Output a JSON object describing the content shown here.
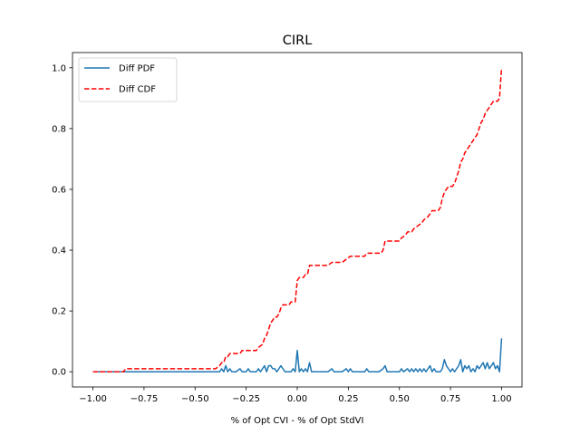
{
  "chart_data": {
    "type": "line",
    "title": "CIRL",
    "xlabel": "% of Opt CVI - % of Opt StdVI",
    "ylabel": "",
    "xlim": [
      -1.1,
      1.1
    ],
    "ylim": [
      -0.05,
      1.05
    ],
    "x_ticks": [
      -1.0,
      -0.75,
      -0.5,
      -0.25,
      0.0,
      0.25,
      0.5,
      0.75,
      1.0
    ],
    "x_tick_labels": [
      "−1.00",
      "−0.75",
      "−0.50",
      "−0.25",
      "0.00",
      "0.25",
      "0.50",
      "0.75",
      "1.00"
    ],
    "y_ticks": [
      0.0,
      0.2,
      0.4,
      0.6,
      0.8,
      1.0
    ],
    "y_tick_labels": [
      "0.0",
      "0.2",
      "0.4",
      "0.6",
      "0.8",
      "1.0"
    ],
    "grid": false,
    "legend": {
      "placement": "top-left",
      "entries": [
        "Diff PDF",
        "Diff CDF"
      ]
    },
    "series": [
      {
        "name": "Diff PDF",
        "color": "#1f77b4",
        "style": "solid",
        "points": [
          [
            -1.0,
            0.0
          ],
          [
            -0.9,
            0.0
          ],
          [
            -0.8,
            0.0
          ],
          [
            -0.6,
            0.0
          ],
          [
            -0.4,
            0.0
          ],
          [
            -0.38,
            0.0
          ],
          [
            -0.37,
            0.01
          ],
          [
            -0.36,
            0.0
          ],
          [
            -0.35,
            0.02
          ],
          [
            -0.34,
            0.0
          ],
          [
            -0.33,
            0.01
          ],
          [
            -0.32,
            0.0
          ],
          [
            -0.3,
            0.0
          ],
          [
            -0.28,
            0.01
          ],
          [
            -0.27,
            0.0
          ],
          [
            -0.25,
            0.0
          ],
          [
            -0.24,
            0.01
          ],
          [
            -0.23,
            0.0
          ],
          [
            -0.2,
            0.0
          ],
          [
            -0.19,
            0.01
          ],
          [
            -0.18,
            0.0
          ],
          [
            -0.17,
            0.01
          ],
          [
            -0.16,
            0.02
          ],
          [
            -0.15,
            0.0
          ],
          [
            -0.14,
            0.02
          ],
          [
            -0.13,
            0.02
          ],
          [
            -0.12,
            0.01
          ],
          [
            -0.11,
            0.01
          ],
          [
            -0.1,
            0.0
          ],
          [
            -0.09,
            0.01
          ],
          [
            -0.08,
            0.02
          ],
          [
            -0.07,
            0.01
          ],
          [
            -0.06,
            0.0
          ],
          [
            -0.04,
            0.0
          ],
          [
            -0.03,
            0.0
          ],
          [
            -0.02,
            0.01
          ],
          [
            -0.01,
            0.0
          ],
          [
            0.0,
            0.07
          ],
          [
            0.01,
            0.0
          ],
          [
            0.02,
            0.01
          ],
          [
            0.03,
            0.0
          ],
          [
            0.04,
            0.01
          ],
          [
            0.05,
            0.0
          ],
          [
            0.06,
            0.03
          ],
          [
            0.07,
            0.0
          ],
          [
            0.1,
            0.0
          ],
          [
            0.15,
            0.0
          ],
          [
            0.17,
            0.01
          ],
          [
            0.18,
            0.0
          ],
          [
            0.22,
            0.0
          ],
          [
            0.24,
            0.01
          ],
          [
            0.25,
            0.0
          ],
          [
            0.26,
            0.01
          ],
          [
            0.27,
            0.0
          ],
          [
            0.3,
            0.0
          ],
          [
            0.33,
            0.0
          ],
          [
            0.34,
            0.01
          ],
          [
            0.35,
            0.0
          ],
          [
            0.4,
            0.0
          ],
          [
            0.42,
            0.01
          ],
          [
            0.43,
            0.02
          ],
          [
            0.44,
            0.0
          ],
          [
            0.5,
            0.0
          ],
          [
            0.51,
            0.01
          ],
          [
            0.52,
            0.0
          ],
          [
            0.54,
            0.01
          ],
          [
            0.55,
            0.0
          ],
          [
            0.56,
            0.01
          ],
          [
            0.57,
            0.0
          ],
          [
            0.58,
            0.01
          ],
          [
            0.59,
            0.0
          ],
          [
            0.6,
            0.01
          ],
          [
            0.61,
            0.0
          ],
          [
            0.62,
            0.01
          ],
          [
            0.63,
            0.0
          ],
          [
            0.64,
            0.01
          ],
          [
            0.65,
            0.02
          ],
          [
            0.66,
            0.0
          ],
          [
            0.67,
            0.01
          ],
          [
            0.68,
            0.0
          ],
          [
            0.7,
            0.0
          ],
          [
            0.71,
            0.01
          ],
          [
            0.72,
            0.04
          ],
          [
            0.73,
            0.02
          ],
          [
            0.74,
            0.01
          ],
          [
            0.75,
            0.0
          ],
          [
            0.76,
            0.01
          ],
          [
            0.77,
            0.0
          ],
          [
            0.78,
            0.01
          ],
          [
            0.79,
            0.02
          ],
          [
            0.8,
            0.04
          ],
          [
            0.81,
            0.0
          ],
          [
            0.82,
            0.02
          ],
          [
            0.83,
            0.01
          ],
          [
            0.84,
            0.02
          ],
          [
            0.85,
            0.0
          ],
          [
            0.86,
            0.01
          ],
          [
            0.87,
            0.0
          ],
          [
            0.88,
            0.02
          ],
          [
            0.89,
            0.01
          ],
          [
            0.9,
            0.02
          ],
          [
            0.91,
            0.03
          ],
          [
            0.92,
            0.01
          ],
          [
            0.93,
            0.03
          ],
          [
            0.94,
            0.01
          ],
          [
            0.95,
            0.02
          ],
          [
            0.96,
            0.03
          ],
          [
            0.97,
            0.01
          ],
          [
            0.98,
            0.02
          ],
          [
            0.99,
            0.0
          ],
          [
            1.0,
            0.11
          ]
        ]
      },
      {
        "name": "Diff CDF",
        "color": "#ff0000",
        "style": "dashed",
        "points": [
          [
            -1.0,
            0.0
          ],
          [
            -0.85,
            0.0
          ],
          [
            -0.84,
            0.01
          ],
          [
            -0.4,
            0.01
          ],
          [
            -0.38,
            0.02
          ],
          [
            -0.37,
            0.03
          ],
          [
            -0.36,
            0.03
          ],
          [
            -0.35,
            0.05
          ],
          [
            -0.34,
            0.05
          ],
          [
            -0.33,
            0.06
          ],
          [
            -0.28,
            0.06
          ],
          [
            -0.27,
            0.07
          ],
          [
            -0.2,
            0.07
          ],
          [
            -0.19,
            0.08
          ],
          [
            -0.17,
            0.09
          ],
          [
            -0.16,
            0.11
          ],
          [
            -0.15,
            0.12
          ],
          [
            -0.14,
            0.14
          ],
          [
            -0.13,
            0.16
          ],
          [
            -0.12,
            0.17
          ],
          [
            -0.11,
            0.18
          ],
          [
            -0.1,
            0.18
          ],
          [
            -0.09,
            0.19
          ],
          [
            -0.08,
            0.21
          ],
          [
            -0.07,
            0.22
          ],
          [
            -0.05,
            0.22
          ],
          [
            -0.04,
            0.22
          ],
          [
            -0.03,
            0.23
          ],
          [
            -0.01,
            0.23
          ],
          [
            0.0,
            0.3
          ],
          [
            0.01,
            0.31
          ],
          [
            0.03,
            0.31
          ],
          [
            0.04,
            0.32
          ],
          [
            0.05,
            0.32
          ],
          [
            0.06,
            0.35
          ],
          [
            0.15,
            0.35
          ],
          [
            0.17,
            0.36
          ],
          [
            0.22,
            0.36
          ],
          [
            0.24,
            0.37
          ],
          [
            0.26,
            0.38
          ],
          [
            0.33,
            0.38
          ],
          [
            0.34,
            0.39
          ],
          [
            0.41,
            0.39
          ],
          [
            0.42,
            0.4
          ],
          [
            0.43,
            0.43
          ],
          [
            0.5,
            0.43
          ],
          [
            0.51,
            0.44
          ],
          [
            0.53,
            0.45
          ],
          [
            0.54,
            0.46
          ],
          [
            0.56,
            0.46
          ],
          [
            0.57,
            0.47
          ],
          [
            0.59,
            0.48
          ],
          [
            0.61,
            0.49
          ],
          [
            0.62,
            0.5
          ],
          [
            0.64,
            0.51
          ],
          [
            0.65,
            0.52
          ],
          [
            0.66,
            0.53
          ],
          [
            0.69,
            0.53
          ],
          [
            0.7,
            0.54
          ],
          [
            0.71,
            0.57
          ],
          [
            0.72,
            0.59
          ],
          [
            0.73,
            0.6
          ],
          [
            0.74,
            0.61
          ],
          [
            0.76,
            0.61
          ],
          [
            0.77,
            0.62
          ],
          [
            0.78,
            0.64
          ],
          [
            0.79,
            0.66
          ],
          [
            0.8,
            0.69
          ],
          [
            0.81,
            0.7
          ],
          [
            0.82,
            0.72
          ],
          [
            0.83,
            0.73
          ],
          [
            0.84,
            0.74
          ],
          [
            0.86,
            0.76
          ],
          [
            0.87,
            0.77
          ],
          [
            0.88,
            0.78
          ],
          [
            0.89,
            0.8
          ],
          [
            0.9,
            0.82
          ],
          [
            0.91,
            0.83
          ],
          [
            0.92,
            0.85
          ],
          [
            0.93,
            0.86
          ],
          [
            0.95,
            0.88
          ],
          [
            0.96,
            0.89
          ],
          [
            0.98,
            0.89
          ],
          [
            0.99,
            0.9
          ],
          [
            1.0,
            1.0
          ]
        ]
      }
    ]
  }
}
